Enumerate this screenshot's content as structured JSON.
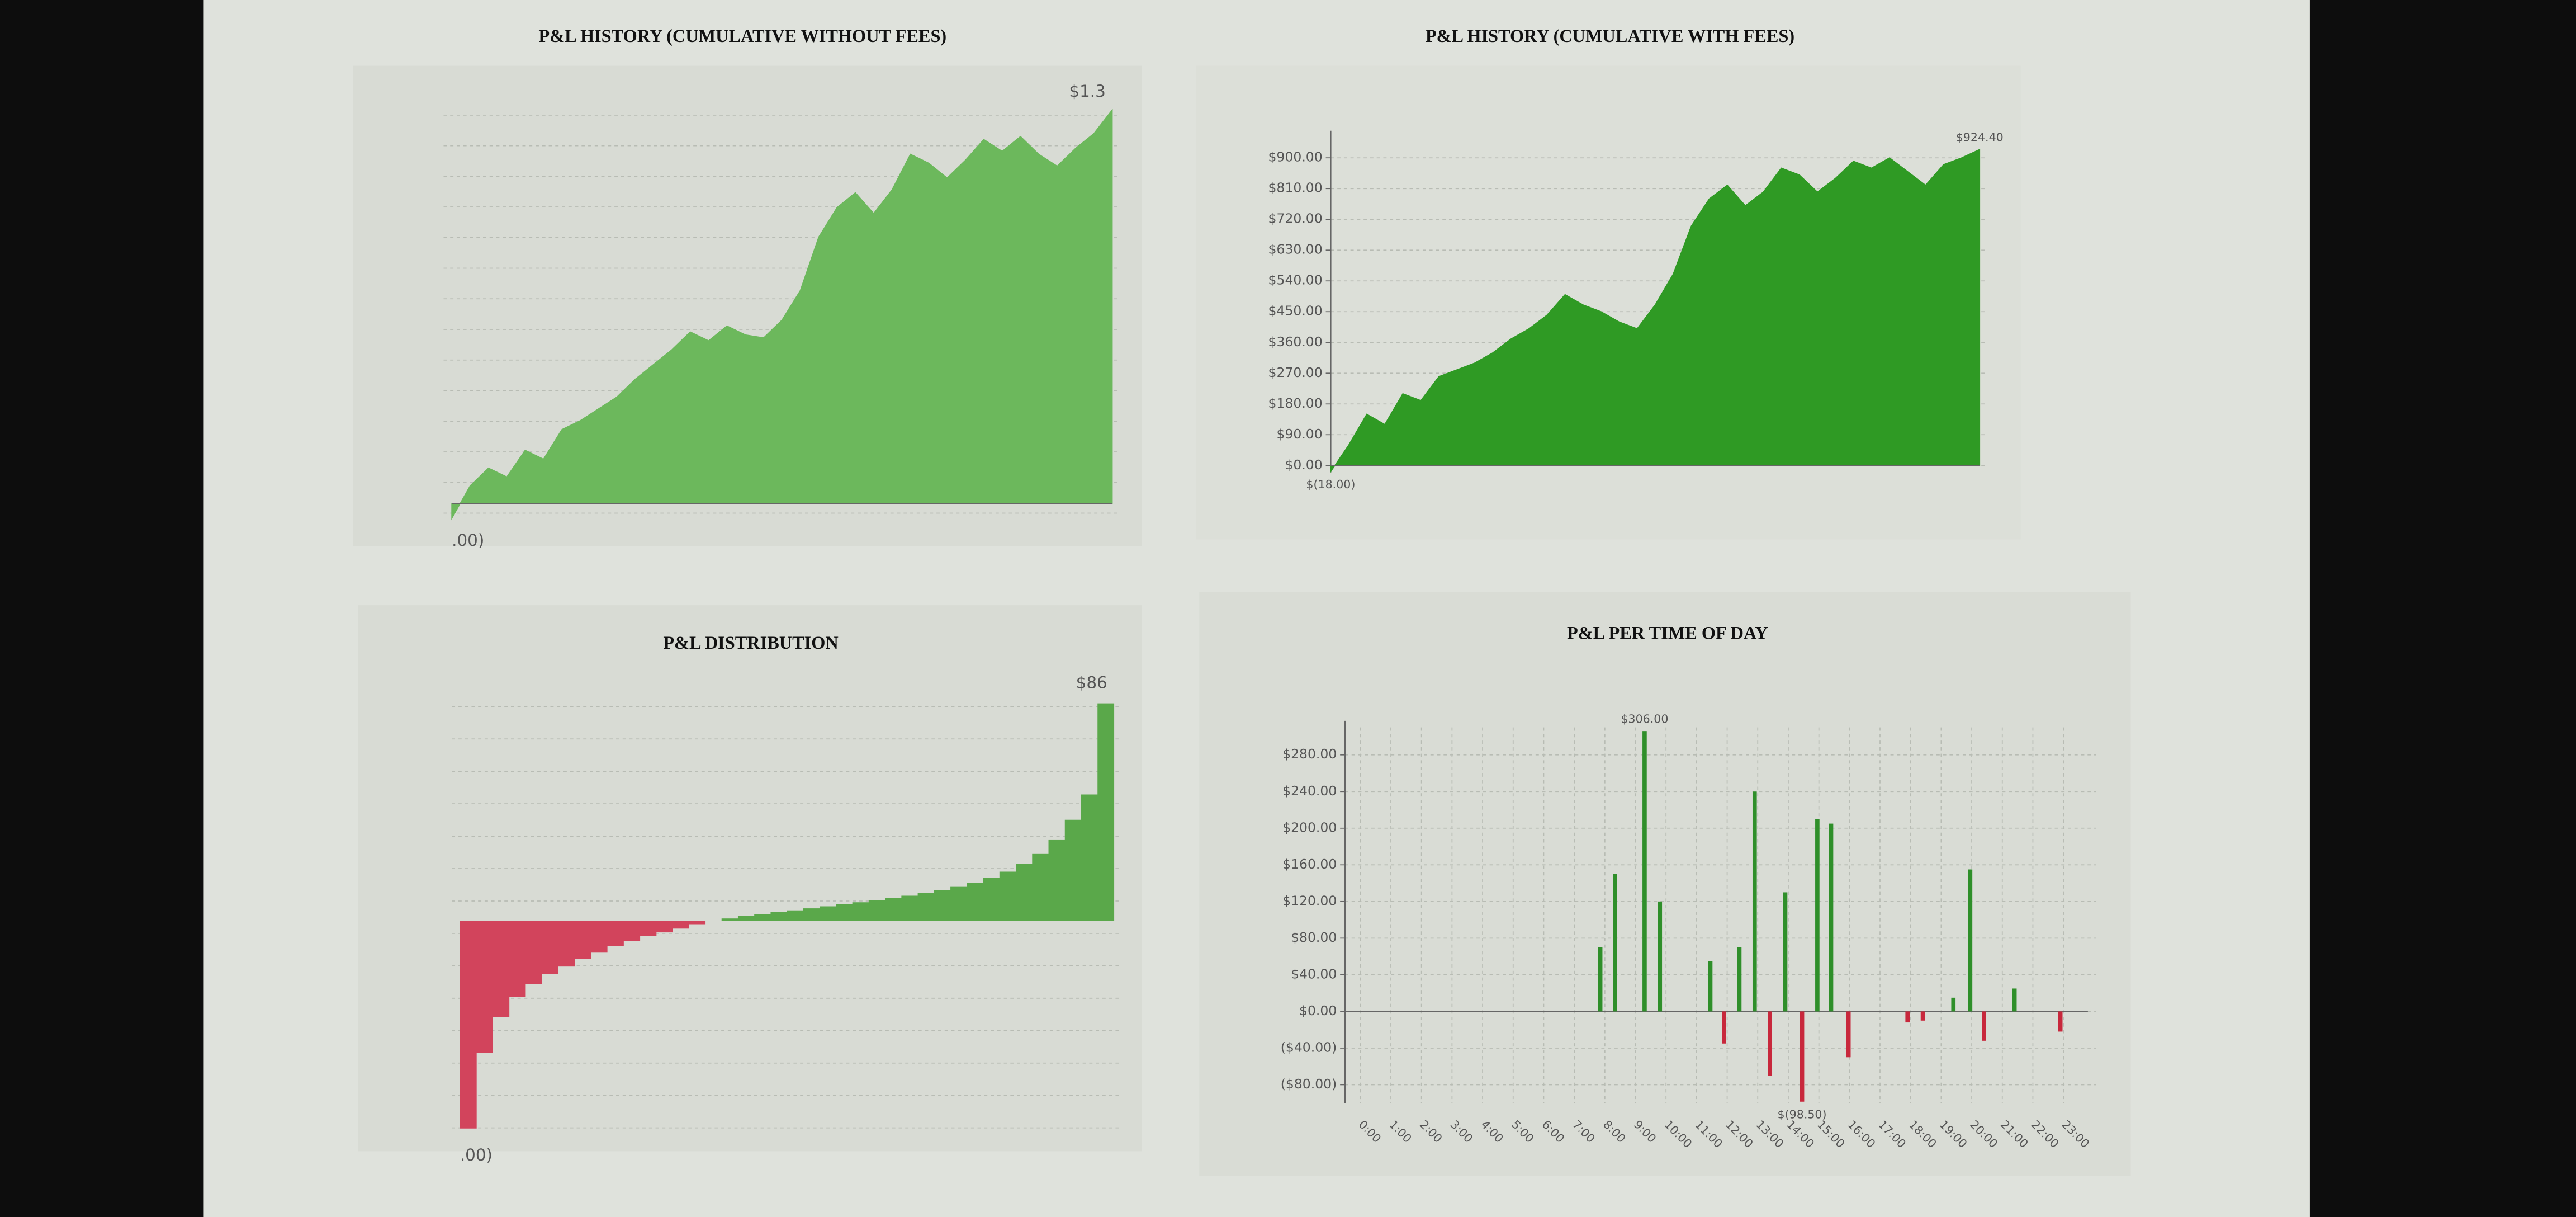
{
  "chart_data": [
    {
      "type": "area",
      "title": "P&L HISTORY (CUMULATIVE WITHOUT FEES)",
      "color": "#6cb85c",
      "grid": true,
      "annotations": [
        "$1.3",
        ".00)"
      ],
      "values": [
        -50,
        60,
        120,
        90,
        180,
        150,
        250,
        280,
        320,
        360,
        420,
        470,
        520,
        580,
        550,
        600,
        570,
        560,
        620,
        720,
        900,
        1000,
        1050,
        980,
        1060,
        1180,
        1150,
        1100,
        1160,
        1230,
        1190,
        1240,
        1180,
        1140,
        1200,
        1250,
        1330
      ],
      "ylim": [
        -60,
        1340
      ]
    },
    {
      "type": "area",
      "title": "P&L HISTORY (CUMULATIVE WITH FEES)",
      "color": "#2f9a24",
      "negative_color": "#c8283c",
      "grid": true,
      "values": [
        -18,
        60,
        150,
        120,
        210,
        190,
        260,
        280,
        300,
        330,
        370,
        400,
        440,
        500,
        470,
        450,
        420,
        400,
        470,
        560,
        700,
        780,
        820,
        760,
        800,
        870,
        850,
        800,
        840,
        890,
        870,
        900,
        860,
        820,
        880,
        900,
        924.4
      ],
      "value_labels": [
        "$(18.00)",
        null,
        null,
        null,
        null,
        null,
        null,
        null,
        null,
        null,
        null,
        null,
        null,
        null,
        null,
        null,
        null,
        null,
        null,
        null,
        null,
        null,
        null,
        null,
        null,
        null,
        null,
        null,
        null,
        null,
        null,
        null,
        null,
        null,
        null,
        null,
        "$924.40"
      ],
      "ylim": [
        -20,
        960
      ],
      "yticks": [
        {
          "value": 0,
          "label": "$0.00"
        },
        {
          "value": 90,
          "label": "$90.00"
        },
        {
          "value": 180,
          "label": "$180.00"
        },
        {
          "value": 270,
          "label": "$270.00"
        },
        {
          "value": 360,
          "label": "$360.00"
        },
        {
          "value": 450,
          "label": "$450.00"
        },
        {
          "value": 540,
          "label": "$540.00"
        },
        {
          "value": 630,
          "label": "$630.00"
        },
        {
          "value": 720,
          "label": "$720.00"
        },
        {
          "value": 810,
          "label": "$810.00"
        },
        {
          "value": 900,
          "label": "$900.00"
        }
      ]
    },
    {
      "type": "distribution",
      "title": "P&L DISTRIBUTION",
      "color": "#5aa84a",
      "negative_color": "#d2445c",
      "grid": true,
      "annotations": [
        "$86",
        ".00)"
      ],
      "values": [
        -820,
        -520,
        -380,
        -300,
        -250,
        -210,
        -180,
        -150,
        -125,
        -100,
        -80,
        -60,
        -45,
        -30,
        -15,
        0,
        10,
        20,
        28,
        35,
        42,
        50,
        58,
        66,
        74,
        82,
        90,
        100,
        110,
        122,
        135,
        150,
        170,
        195,
        225,
        265,
        320,
        400,
        500,
        860
      ],
      "ylim": [
        -850,
        880
      ]
    },
    {
      "type": "time-bar",
      "title": "P&L PER TIME OF DAY",
      "color": "#2f8f2a",
      "negative_color": "#c8283c",
      "grid": true,
      "x": [
        7.85,
        8.33,
        9.3,
        9.8,
        11.45,
        11.9,
        12.4,
        12.9,
        13.4,
        13.9,
        14.45,
        14.95,
        15.4,
        15.97,
        17.9,
        18.4,
        19.4,
        19.95,
        20.4,
        21.4,
        22.9
      ],
      "values": [
        70,
        150,
        306,
        120,
        55,
        -35,
        70,
        240,
        -70,
        130,
        -98.5,
        210,
        205,
        -50,
        -12,
        -10,
        15,
        155,
        -32,
        25,
        -22
      ],
      "value_labels": [
        null,
        null,
        "$306.00",
        null,
        null,
        null,
        null,
        null,
        null,
        null,
        "$(98.50)",
        null,
        null,
        null,
        null,
        null,
        null,
        null,
        null,
        null,
        null
      ],
      "xlim": [
        -0.5,
        23.8
      ],
      "xticks": [
        {
          "value": 0,
          "label": "0:00"
        },
        {
          "value": 1,
          "label": "1:00"
        },
        {
          "value": 2,
          "label": "2:00"
        },
        {
          "value": 3,
          "label": "3:00"
        },
        {
          "value": 4,
          "label": "4:00"
        },
        {
          "value": 5,
          "label": "5:00"
        },
        {
          "value": 6,
          "label": "6:00"
        },
        {
          "value": 7,
          "label": "7:00"
        },
        {
          "value": 8,
          "label": "8:00"
        },
        {
          "value": 9,
          "label": "9:00"
        },
        {
          "value": 10,
          "label": "10:00"
        },
        {
          "value": 11,
          "label": "11:00"
        },
        {
          "value": 12,
          "label": "12:00"
        },
        {
          "value": 13,
          "label": "13:00"
        },
        {
          "value": 14,
          "label": "14:00"
        },
        {
          "value": 15,
          "label": "15:00"
        },
        {
          "value": 16,
          "label": "16:00"
        },
        {
          "value": 17,
          "label": "17:00"
        },
        {
          "value": 18,
          "label": "18:00"
        },
        {
          "value": 19,
          "label": "19:00"
        },
        {
          "value": 20,
          "label": "20:00"
        },
        {
          "value": 21,
          "label": "21:00"
        },
        {
          "value": 22,
          "label": "22:00"
        },
        {
          "value": 23,
          "label": "23:00"
        }
      ],
      "ylim": [
        -100,
        310
      ],
      "yticks": [
        {
          "value": -80,
          "label": "($80.00)"
        },
        {
          "value": -40,
          "label": "($40.00)"
        },
        {
          "value": 0,
          "label": "$0.00"
        },
        {
          "value": 40,
          "label": "$40.00"
        },
        {
          "value": 80,
          "label": "$80.00"
        },
        {
          "value": 120,
          "label": "$120.00"
        },
        {
          "value": 160,
          "label": "$160.00"
        },
        {
          "value": 200,
          "label": "$200.00"
        },
        {
          "value": 240,
          "label": "$240.00"
        },
        {
          "value": 280,
          "label": "$280.00"
        }
      ]
    }
  ]
}
